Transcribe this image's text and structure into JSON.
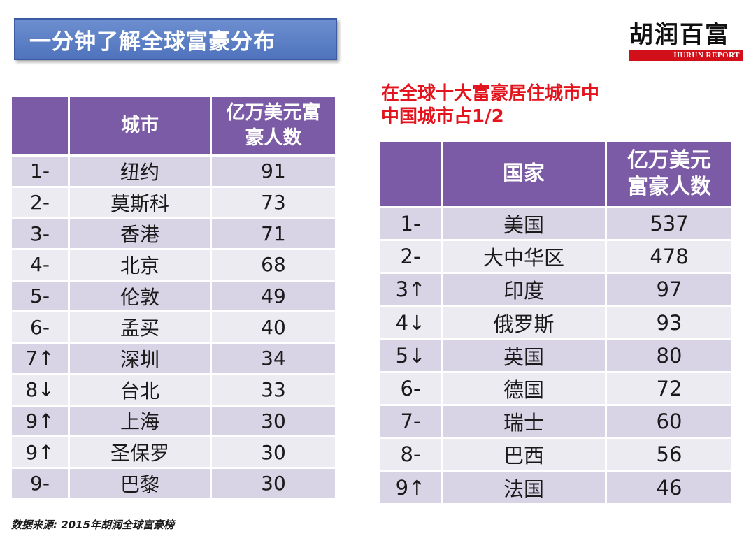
{
  "title": "一分钟了解全球富豪分布",
  "logo": {
    "cn": "胡润百富",
    "en": "HURUN REPORT"
  },
  "subtitle_lines": [
    "在全球十大富豪居住城市中",
    "中国城市占1/2"
  ],
  "city_table": {
    "headers": [
      "",
      "城市",
      "亿万美元富豪人数"
    ],
    "rows": [
      {
        "rank": "1-",
        "name": "纽约",
        "count": "91"
      },
      {
        "rank": "2-",
        "name": "莫斯科",
        "count": "73"
      },
      {
        "rank": "3-",
        "name": "香港",
        "count": "71"
      },
      {
        "rank": "4-",
        "name": "北京",
        "count": "68"
      },
      {
        "rank": "5-",
        "name": "伦敦",
        "count": "49"
      },
      {
        "rank": "6-",
        "name": "孟买",
        "count": "40"
      },
      {
        "rank": "7↑",
        "name": "深圳",
        "count": "34"
      },
      {
        "rank": "8↓",
        "name": "台北",
        "count": "33"
      },
      {
        "rank": "9↑",
        "name": "上海",
        "count": "30"
      },
      {
        "rank": "9↑",
        "name": "圣保罗",
        "count": "30"
      },
      {
        "rank": "9-",
        "name": "巴黎",
        "count": "30"
      }
    ]
  },
  "country_table": {
    "headers": [
      "",
      "国家",
      "亿万美元富豪人数"
    ],
    "rows": [
      {
        "rank": "1-",
        "name": "美国",
        "count": "537"
      },
      {
        "rank": "2-",
        "name": "大中华区",
        "count": "478"
      },
      {
        "rank": "3↑",
        "name": "印度",
        "count": "97"
      },
      {
        "rank": "4↓",
        "name": "俄罗斯",
        "count": "93"
      },
      {
        "rank": "5↓",
        "name": "英国",
        "count": "80"
      },
      {
        "rank": "6-",
        "name": "德国",
        "count": "72"
      },
      {
        "rank": "7-",
        "name": "瑞士",
        "count": "60"
      },
      {
        "rank": "8-",
        "name": "巴西",
        "count": "56"
      },
      {
        "rank": "9↑",
        "name": "法国",
        "count": "46"
      }
    ]
  },
  "source_note": "数据来源: 2015年胡润全球富豪榜",
  "colors": {
    "header_purple": "#7b5aa6",
    "row_dark": "#d8d3e5",
    "row_light": "#ecebf2",
    "title_blue": "#4f73bd",
    "accent_red": "#e3141d"
  }
}
